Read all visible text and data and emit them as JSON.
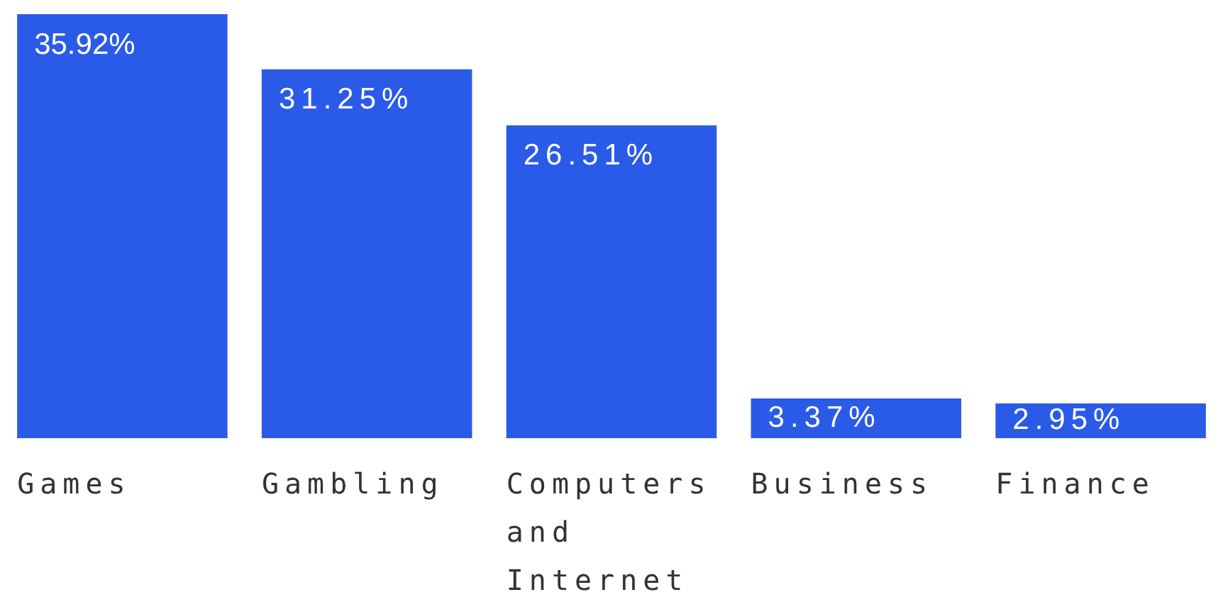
{
  "chart_data": {
    "type": "bar",
    "categories": [
      "Games",
      "Gambling",
      "Computers and Internet",
      "Business",
      "Finance"
    ],
    "values": [
      35.92,
      31.25,
      26.51,
      3.37,
      2.95
    ],
    "value_labels": [
      "35.92%",
      "31.25%",
      "26.51%",
      "3.37%",
      "2.95%"
    ],
    "color": "#2a5be8",
    "legend": false
  }
}
